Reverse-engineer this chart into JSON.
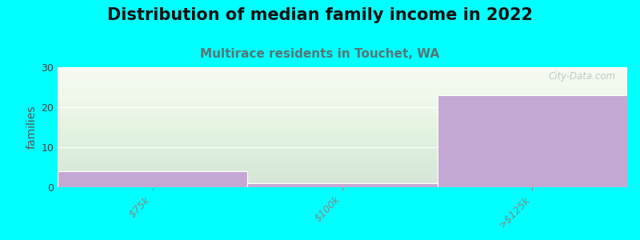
{
  "title": "Distribution of median family income in 2022",
  "subtitle": "Multirace residents in Touchet, WA",
  "ylabel": "families",
  "categories": [
    "$75k",
    "$100k",
    ">$125k"
  ],
  "values": [
    4,
    1,
    23
  ],
  "ylim": [
    0,
    30
  ],
  "yticks": [
    0,
    10,
    20,
    30
  ],
  "bar_color": "#C4A8D4",
  "background_color": "#00FFFF",
  "plot_bg_top": "#F5FAF0",
  "plot_bg_bottom": "#FFFFFF",
  "grid_color": "#E0E8D8",
  "title_fontsize": 15,
  "subtitle_fontsize": 11,
  "subtitle_color": "#557777",
  "ylabel_fontsize": 10,
  "tick_fontsize": 9,
  "tick_color": "#AA4444",
  "watermark": "City-Data.com",
  "bar_width": 1.0
}
